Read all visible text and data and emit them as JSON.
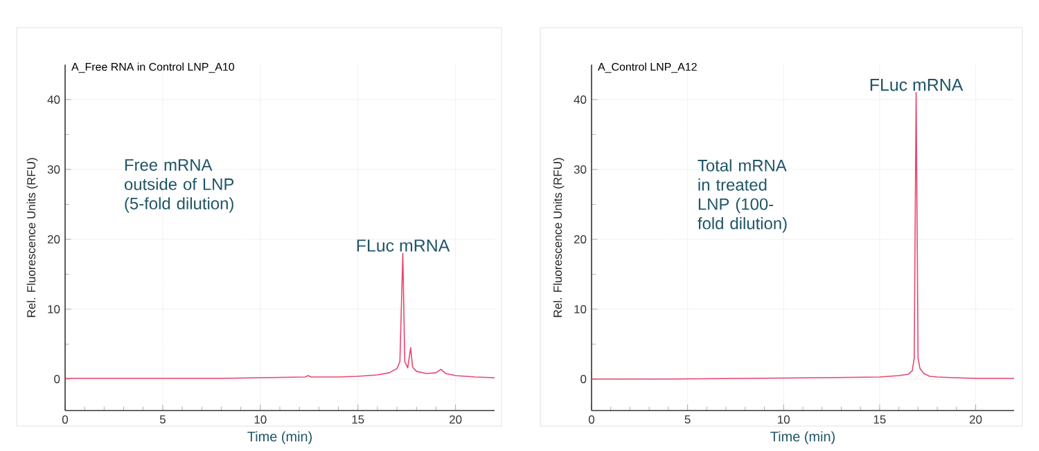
{
  "chart_data": [
    {
      "type": "line",
      "title": "A_Free RNA in Control LNP_A10",
      "xlabel": "Time (min)",
      "ylabel": "Rel. Fluorescence Units (RFU)",
      "xlim": [
        0,
        22
      ],
      "ylim": [
        -4.5,
        45
      ],
      "xticks": [
        0,
        5,
        10,
        15,
        20
      ],
      "yticks": [
        0,
        10,
        20,
        30,
        40
      ],
      "grid": true,
      "marker": "none",
      "line_style": "solid",
      "series": [
        {
          "color": "#e8456e",
          "x": [
            0,
            4,
            8,
            10,
            12.3,
            12.45,
            12.6,
            14,
            15,
            16,
            16.6,
            17.0,
            17.15,
            17.3,
            17.4,
            17.55,
            17.7,
            17.8,
            18.0,
            18.5,
            19.0,
            19.25,
            19.5,
            20,
            21,
            22
          ],
          "values": [
            0.1,
            0.1,
            0.1,
            0.2,
            0.3,
            0.5,
            0.3,
            0.3,
            0.4,
            0.6,
            0.9,
            1.5,
            2.5,
            18,
            2.5,
            1.6,
            4.5,
            1.7,
            1.1,
            0.8,
            0.9,
            1.4,
            0.8,
            0.5,
            0.3,
            0.2
          ]
        }
      ],
      "annotations": [
        "Free mRNA outside of LNP (5-fold dilution)",
        {
          "text": "FLuc mRNA",
          "x": 17.3,
          "y": 18
        }
      ]
    },
    {
      "type": "line",
      "title": "A_Control LNP_A12",
      "xlabel": "Time (min)",
      "ylabel": "Rel. Fluorescence Units (RFU)",
      "xlim": [
        0,
        22
      ],
      "ylim": [
        -4.5,
        45
      ],
      "xticks": [
        0,
        5,
        10,
        15,
        20
      ],
      "yticks": [
        0,
        10,
        20,
        30,
        40
      ],
      "grid": true,
      "marker": "none",
      "line_style": "solid",
      "series": [
        {
          "color": "#e8456e",
          "x": [
            0,
            4,
            8,
            12,
            15,
            16,
            16.5,
            16.7,
            16.8,
            16.9,
            17.0,
            17.1,
            17.3,
            17.6,
            18.0,
            18.9,
            20,
            22
          ],
          "values": [
            0,
            0,
            0.1,
            0.2,
            0.3,
            0.5,
            0.7,
            1.2,
            3,
            41,
            3,
            1.5,
            0.8,
            0.4,
            0.3,
            0.2,
            0.1,
            0.1
          ]
        }
      ],
      "annotations": [
        "Total mRNA in treated LNP (100-fold dilution)",
        {
          "text": "FLuc mRNA",
          "x": 16.9,
          "y": 41
        }
      ]
    }
  ]
}
